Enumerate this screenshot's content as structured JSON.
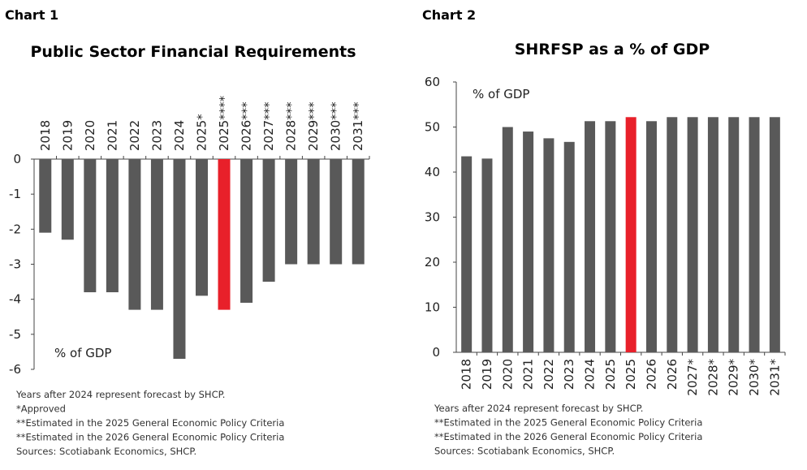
{
  "headers": [
    "Chart 1",
    "Chart 2"
  ],
  "chart_data": [
    {
      "type": "bar",
      "title": "Public Sector Financial Requirements",
      "annotation": "% of GDP",
      "categories": [
        "2018",
        "2019",
        "2020",
        "2021",
        "2022",
        "2023",
        "2024",
        "2025*",
        "2025****",
        "2026***",
        "2027***",
        "2028***",
        "2029***",
        "2030***",
        "2031***"
      ],
      "values": [
        -2.1,
        -2.3,
        -3.8,
        -3.8,
        -4.3,
        -4.3,
        -5.7,
        -3.9,
        -4.3,
        -4.1,
        -3.5,
        -3.0,
        -3.0,
        -3.0,
        -3.0
      ],
      "colors": [
        "#595959",
        "#595959",
        "#595959",
        "#595959",
        "#595959",
        "#595959",
        "#595959",
        "#595959",
        "#e8202a",
        "#595959",
        "#595959",
        "#595959",
        "#595959",
        "#595959",
        "#595959"
      ],
      "ylim": [
        -6,
        0
      ],
      "yticks": [
        0,
        -1,
        -2,
        -3,
        -4,
        -5,
        -6
      ],
      "notes": [
        "Years after 2024 represent forecast by SHCP.",
        "*Approved",
        "**Estimated in the 2025 General Economic Policy Criteria",
        "**Estimated in the 2026 General Economic Policy Criteria",
        "Sources: Scotiabank Economics, SHCP."
      ]
    },
    {
      "type": "bar",
      "title": "SHRFSP as a % of GDP",
      "annotation": "% of GDP",
      "categories": [
        "2018",
        "2019",
        "2020",
        "2021",
        "2022",
        "2023",
        "2024",
        "2025",
        "2025",
        "2026",
        "2026",
        "2027*",
        "2028*",
        "2029*",
        "2030*",
        "2031*"
      ],
      "values": [
        43.5,
        43,
        50,
        49,
        47.5,
        46.7,
        51.3,
        51.3,
        52.2,
        51.3,
        52.2,
        52.2,
        52.2,
        52.2,
        52.2,
        52.2
      ],
      "colors": [
        "#595959",
        "#595959",
        "#595959",
        "#595959",
        "#595959",
        "#595959",
        "#595959",
        "#595959",
        "#e8202a",
        "#595959",
        "#595959",
        "#595959",
        "#595959",
        "#595959",
        "#595959",
        "#595959"
      ],
      "ylim": [
        0,
        60
      ],
      "yticks": [
        0,
        10,
        20,
        30,
        40,
        50,
        60
      ],
      "notes": [
        "Years after 2024 represent forecast by SHCP.",
        "**Estimated in the 2025 General Economic Policy Criteria",
        "**Estimated in the 2026 General Economic Policy Criteria",
        "Sources: Scotiabank Economics, SHCP."
      ]
    }
  ]
}
